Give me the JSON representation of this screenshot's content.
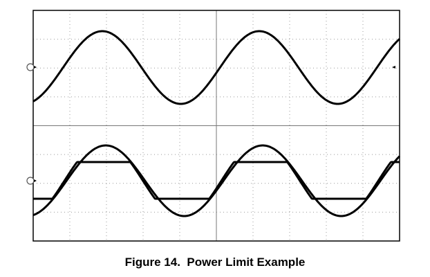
{
  "caption": "Figure 14.  Power Limit Example"
}
